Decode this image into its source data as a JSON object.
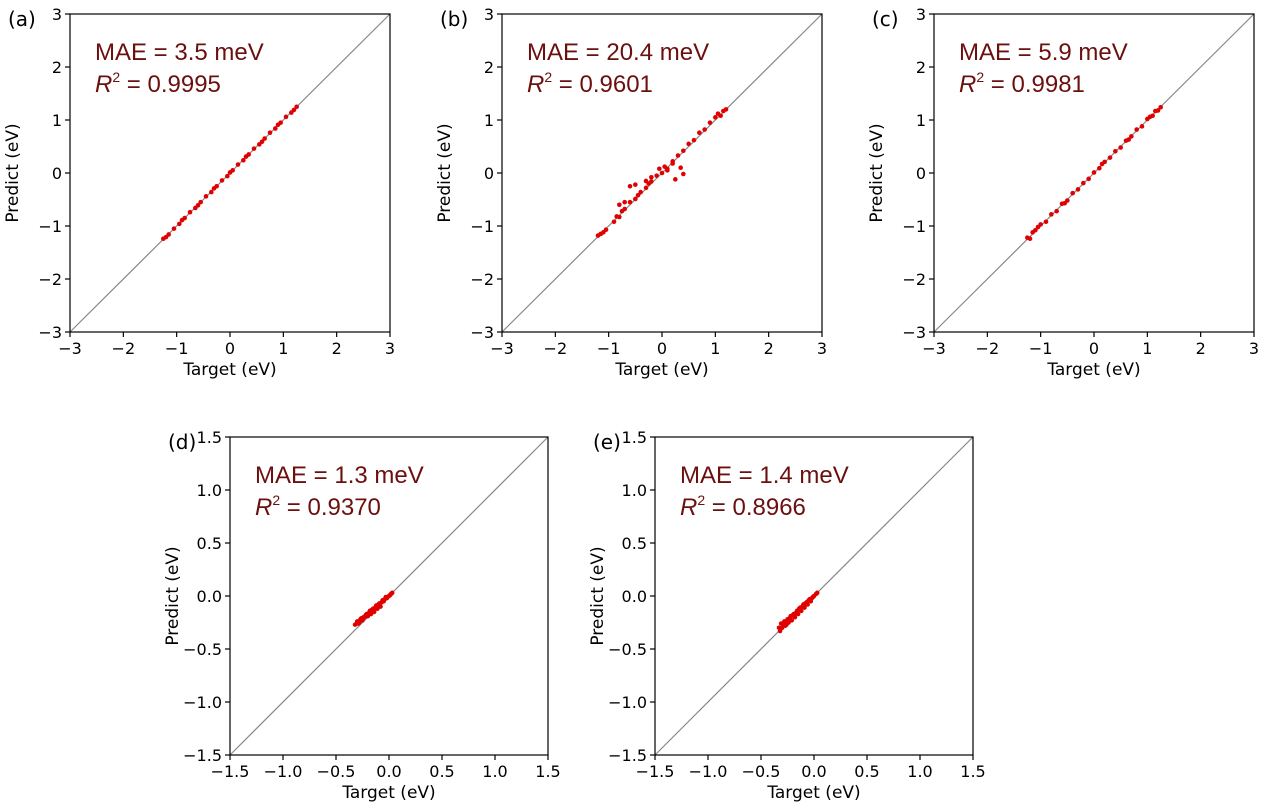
{
  "colors": {
    "points": "#e00000",
    "diagonal": "#888888",
    "metric_text": "#6b0f0f"
  },
  "chart_data": [
    {
      "type": "scatter",
      "label": "(a)",
      "xlabel": "Target (eV)",
      "ylabel": "Predict (eV)",
      "xlim": [
        -3,
        3
      ],
      "ylim": [
        -3,
        3
      ],
      "ticks": [
        -3,
        -2,
        -1,
        0,
        1,
        2,
        3
      ],
      "tick_labels": [
        "−3",
        "−2",
        "−1",
        "0",
        "1",
        "2",
        "3"
      ],
      "mae_text": "MAE = 3.5 meV",
      "r2_symbol": "R",
      "r2_exp": "2",
      "r2_value": " = 0.9995",
      "points": {
        "x": [
          -1.25,
          -1.15,
          -1.05,
          -0.95,
          -0.85,
          -0.75,
          -0.65,
          -0.55,
          -0.45,
          -0.35,
          -0.25,
          -0.15,
          -0.05,
          0.05,
          0.15,
          0.25,
          0.35,
          0.45,
          0.55,
          0.65,
          0.75,
          0.85,
          0.95,
          1.05,
          1.15,
          1.25,
          -1.2,
          -0.9,
          -0.6,
          -0.3,
          0.0,
          0.3,
          0.6,
          0.9,
          1.2
        ],
        "y": [
          -1.24,
          -1.16,
          -1.05,
          -0.96,
          -0.85,
          -0.74,
          -0.66,
          -0.55,
          -0.44,
          -0.36,
          -0.25,
          -0.14,
          -0.06,
          0.05,
          0.16,
          0.24,
          0.35,
          0.46,
          0.54,
          0.65,
          0.76,
          0.84,
          0.95,
          1.06,
          1.14,
          1.25,
          -1.21,
          -0.89,
          -0.61,
          -0.29,
          0.01,
          0.31,
          0.59,
          0.91,
          1.19
        ]
      }
    },
    {
      "type": "scatter",
      "label": "(b)",
      "xlabel": "Target (eV)",
      "ylabel": "Predict (eV)",
      "xlim": [
        -3,
        3
      ],
      "ylim": [
        -3,
        3
      ],
      "ticks": [
        -3,
        -2,
        -1,
        0,
        1,
        2,
        3
      ],
      "tick_labels": [
        "−3",
        "−2",
        "−1",
        "0",
        "1",
        "2",
        "3"
      ],
      "mae_text": "MAE = 20.4 meV",
      "r2_symbol": "R",
      "r2_exp": "2",
      "r2_value": " = 0.9601",
      "points": {
        "x": [
          -1.2,
          -1.15,
          -1.1,
          -1.05,
          -0.9,
          -0.85,
          -0.8,
          -0.75,
          -0.7,
          -0.6,
          -0.5,
          -0.45,
          -0.4,
          -0.3,
          -0.25,
          -0.2,
          -0.1,
          0.0,
          0.1,
          0.2,
          0.3,
          0.4,
          0.5,
          0.6,
          0.7,
          0.8,
          0.9,
          1.0,
          1.05,
          1.1,
          1.15,
          1.2,
          -0.6,
          -0.5,
          -0.3,
          -0.2,
          0.1,
          0.2,
          0.4,
          -0.8,
          -0.7,
          0.05,
          -0.05,
          0.25,
          0.35
        ],
        "y": [
          -1.18,
          -1.15,
          -1.12,
          -1.07,
          -0.92,
          -0.82,
          -0.83,
          -0.72,
          -0.68,
          -0.55,
          -0.49,
          -0.42,
          -0.36,
          -0.28,
          -0.2,
          -0.16,
          -0.05,
          0.0,
          0.08,
          0.22,
          0.33,
          0.42,
          0.55,
          0.62,
          0.76,
          0.82,
          0.95,
          1.05,
          1.12,
          1.08,
          1.17,
          1.2,
          -0.25,
          -0.22,
          -0.15,
          -0.08,
          0.05,
          0.18,
          -0.02,
          -0.6,
          -0.55,
          0.12,
          0.08,
          -0.12,
          0.1
        ]
      }
    },
    {
      "type": "scatter",
      "label": "(c)",
      "xlabel": "Target (eV)",
      "ylabel": "Predict (eV)",
      "xlim": [
        -3,
        3
      ],
      "ylim": [
        -3,
        3
      ],
      "ticks": [
        -3,
        -2,
        -1,
        0,
        1,
        2,
        3
      ],
      "tick_labels": [
        "−3",
        "−2",
        "−1",
        "0",
        "1",
        "2",
        "3"
      ],
      "mae_text": "MAE = 5.9 meV",
      "r2_symbol": "R",
      "r2_exp": "2",
      "r2_value": " = 0.9981",
      "points": {
        "x": [
          -1.25,
          -1.2,
          -1.15,
          -1.1,
          -1.0,
          -0.9,
          -0.8,
          -0.7,
          -0.6,
          -0.5,
          -0.4,
          -0.3,
          -0.2,
          -0.1,
          0.0,
          0.1,
          0.2,
          0.3,
          0.4,
          0.5,
          0.6,
          0.7,
          0.8,
          0.9,
          1.0,
          1.1,
          1.15,
          1.2,
          1.25,
          -1.05,
          -0.55,
          0.15,
          0.65,
          1.05
        ],
        "y": [
          -1.22,
          -1.24,
          -1.12,
          -1.08,
          -0.97,
          -0.92,
          -0.78,
          -0.72,
          -0.58,
          -0.52,
          -0.38,
          -0.31,
          -0.19,
          -0.11,
          0.01,
          0.09,
          0.21,
          0.29,
          0.41,
          0.48,
          0.61,
          0.69,
          0.82,
          0.88,
          1.02,
          1.08,
          1.17,
          1.18,
          1.24,
          -1.02,
          -0.57,
          0.17,
          0.63,
          1.06
        ]
      }
    },
    {
      "type": "scatter",
      "label": "(d)",
      "xlabel": "Target (eV)",
      "ylabel": "Predict (eV)",
      "xlim": [
        -1.5,
        1.5
      ],
      "ylim": [
        -1.5,
        1.5
      ],
      "ticks": [
        -1.5,
        -1.0,
        -0.5,
        0.0,
        0.5,
        1.0,
        1.5
      ],
      "tick_labels": [
        "−1.5",
        "−1.0",
        "−0.5",
        "0.0",
        "0.5",
        "1.0",
        "1.5"
      ],
      "mae_text": "MAE = 1.3 meV",
      "r2_symbol": "R",
      "r2_exp": "2",
      "r2_value": " = 0.9370",
      "points": {
        "x": [
          -0.32,
          -0.3,
          -0.28,
          -0.26,
          -0.25,
          -0.23,
          -0.22,
          -0.2,
          -0.19,
          -0.17,
          -0.16,
          -0.14,
          -0.13,
          -0.11,
          -0.1,
          -0.08,
          -0.07,
          -0.05,
          -0.04,
          -0.02,
          0.0,
          0.02,
          0.03,
          -0.29,
          -0.27,
          -0.24,
          -0.21,
          -0.18,
          -0.15,
          -0.12,
          -0.09,
          -0.06,
          -0.03,
          0.01
        ],
        "y": [
          -0.27,
          -0.24,
          -0.25,
          -0.21,
          -0.23,
          -0.2,
          -0.18,
          -0.19,
          -0.16,
          -0.17,
          -0.13,
          -0.15,
          -0.11,
          -0.12,
          -0.08,
          -0.1,
          -0.06,
          -0.05,
          -0.03,
          -0.02,
          0.0,
          0.02,
          0.03,
          -0.26,
          -0.22,
          -0.2,
          -0.17,
          -0.14,
          -0.12,
          -0.09,
          -0.07,
          -0.04,
          -0.01,
          0.01
        ]
      }
    },
    {
      "type": "scatter",
      "label": "(e)",
      "xlabel": "Target (eV)",
      "ylabel": "Predict (eV)",
      "xlim": [
        -1.5,
        1.5
      ],
      "ylim": [
        -1.5,
        1.5
      ],
      "ticks": [
        -1.5,
        -1.0,
        -0.5,
        0.0,
        0.5,
        1.0,
        1.5
      ],
      "tick_labels": [
        "−1.5",
        "−1.0",
        "−0.5",
        "0.0",
        "0.5",
        "1.0",
        "1.5"
      ],
      "mae_text": "MAE = 1.4 meV",
      "r2_symbol": "R",
      "r2_exp": "2",
      "r2_value": " = 0.8966",
      "points": {
        "x": [
          -0.33,
          -0.31,
          -0.3,
          -0.28,
          -0.27,
          -0.25,
          -0.24,
          -0.22,
          -0.21,
          -0.19,
          -0.18,
          -0.16,
          -0.15,
          -0.13,
          -0.12,
          -0.1,
          -0.09,
          -0.07,
          -0.06,
          -0.04,
          -0.03,
          -0.01,
          0.0,
          0.02,
          0.03,
          -0.32,
          -0.29,
          -0.26,
          -0.23,
          -0.2,
          -0.17,
          -0.14,
          -0.11,
          -0.08,
          -0.05,
          -0.02
        ],
        "y": [
          -0.3,
          -0.26,
          -0.3,
          -0.24,
          -0.28,
          -0.22,
          -0.25,
          -0.19,
          -0.23,
          -0.17,
          -0.2,
          -0.14,
          -0.17,
          -0.11,
          -0.14,
          -0.08,
          -0.11,
          -0.06,
          -0.08,
          -0.03,
          -0.05,
          -0.01,
          0.0,
          0.02,
          0.03,
          -0.33,
          -0.27,
          -0.27,
          -0.21,
          -0.18,
          -0.16,
          -0.12,
          -0.1,
          -0.07,
          -0.04,
          -0.02
        ]
      }
    }
  ]
}
